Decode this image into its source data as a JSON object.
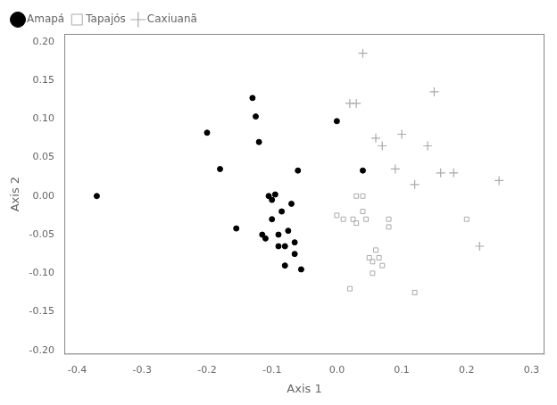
{
  "chart_data": {
    "type": "scatter",
    "xlabel": "Axis 1",
    "ylabel": "Axis 2",
    "series": [
      {
        "name": "Amapá",
        "color": "#000000",
        "marker": "circle",
        "x": [
          -0.37,
          -0.2,
          -0.18,
          -0.155,
          -0.13,
          -0.125,
          -0.12,
          -0.115,
          -0.11,
          -0.105,
          -0.1,
          -0.095,
          -0.09,
          -0.085,
          -0.08,
          -0.075,
          -0.07,
          -0.065,
          -0.065,
          -0.06,
          -0.055,
          0.0,
          0.04,
          -0.1,
          -0.09,
          -0.08
        ],
        "values": [
          0.0,
          0.082,
          0.035,
          -0.042,
          0.127,
          0.103,
          0.07,
          -0.05,
          -0.055,
          0.0,
          -0.03,
          0.002,
          -0.05,
          -0.02,
          -0.065,
          -0.045,
          -0.01,
          -0.075,
          -0.06,
          0.033,
          -0.095,
          0.097,
          0.033,
          -0.005,
          -0.065,
          -0.09
        ]
      },
      {
        "name": "Tapajós",
        "color": "#aaaaaa",
        "marker": "open_square",
        "x": [
          0.0,
          0.01,
          0.025,
          0.03,
          0.04,
          0.045,
          0.05,
          0.055,
          0.055,
          0.06,
          0.065,
          0.07,
          0.08,
          0.08,
          0.12,
          0.2,
          0.02,
          0.04,
          0.03
        ],
        "values": [
          -0.025,
          -0.03,
          -0.03,
          -0.035,
          -0.02,
          -0.03,
          -0.08,
          -0.085,
          -0.1,
          -0.07,
          -0.08,
          -0.09,
          -0.03,
          -0.04,
          -0.125,
          -0.03,
          -0.12,
          0.0,
          0.0
        ]
      },
      {
        "name": "Caxiuanã",
        "color": "#aaaaaa",
        "marker": "plus",
        "x": [
          0.04,
          0.02,
          0.03,
          0.06,
          0.07,
          0.09,
          0.1,
          0.12,
          0.14,
          0.15,
          0.16,
          0.18,
          0.22,
          0.25
        ],
        "values": [
          0.185,
          0.12,
          0.12,
          0.075,
          0.065,
          0.035,
          0.08,
          0.015,
          0.065,
          0.135,
          0.03,
          0.03,
          -0.065,
          0.02
        ]
      }
    ],
    "xlim": [
      -0.42,
      0.32
    ],
    "ylim": [
      -0.205,
      0.21
    ],
    "xticks": [
      -0.4,
      -0.3,
      -0.2,
      -0.1,
      {
        "value": 0.0,
        "label": "0.0"
      },
      0.1,
      0.2,
      0.3
    ],
    "yticks": [
      {
        "value": -0.2,
        "label": "-0.20"
      },
      -0.15,
      {
        "value": -0.1,
        "label": "-0.10"
      },
      -0.05,
      {
        "value": 0.0,
        "label": "0.00"
      },
      0.05,
      {
        "value": 0.1,
        "label": "0.10"
      },
      0.15,
      {
        "value": 0.2,
        "label": "0.20"
      }
    ],
    "grid": false,
    "legend": "upper left"
  }
}
